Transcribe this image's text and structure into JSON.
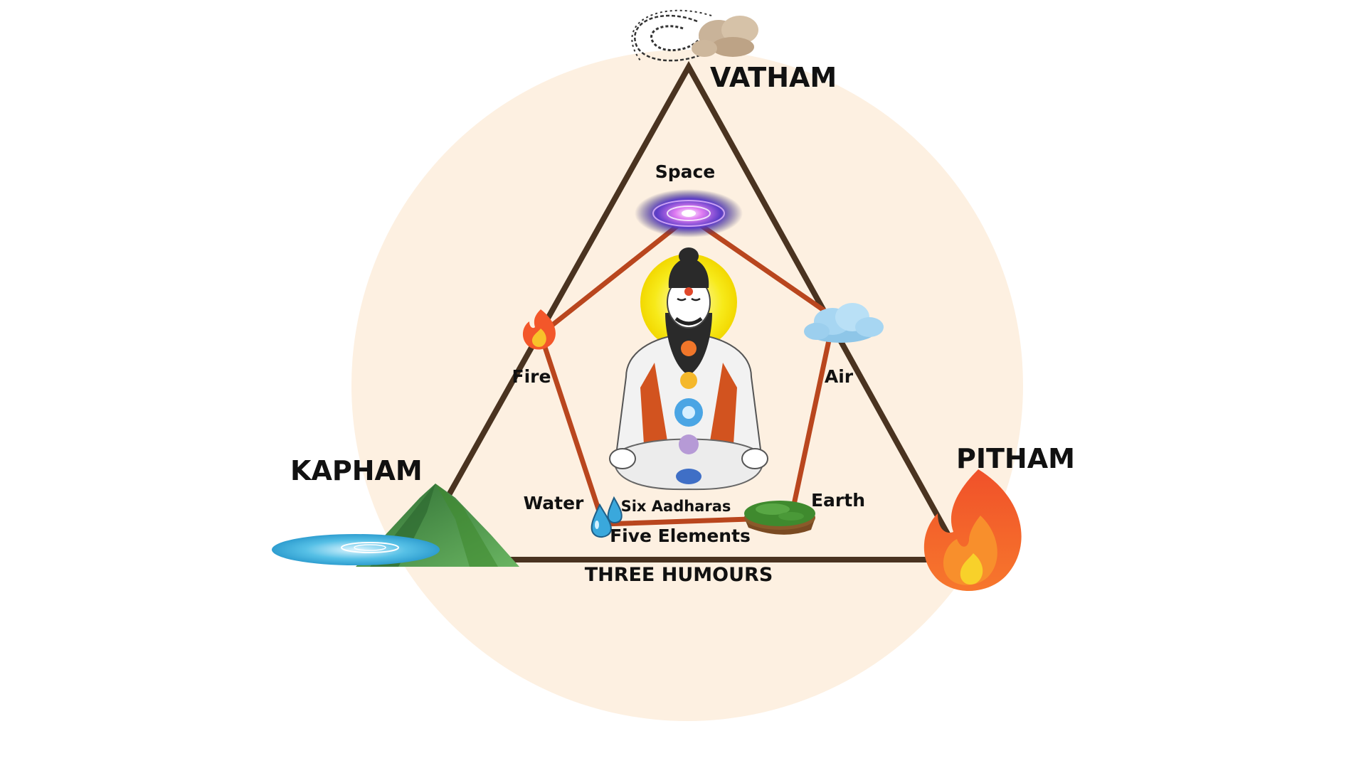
{
  "colors": {
    "background_circle": "#fdf0e1",
    "humour_triangle": "#4a3320",
    "element_pentagon": "#b9461e",
    "halo": "#f7ea1a",
    "fire": "#f2562b",
    "water": "#39a6d8",
    "earth": "#3f8a2e",
    "mountain": "#4f9a4c"
  },
  "humours": {
    "vatham": "VATHAM",
    "pitham": "PITHAM",
    "kapham": "KAPHAM",
    "title": "THREE HUMOURS"
  },
  "elements": {
    "space": "Space",
    "fire": "Fire",
    "air": "Air",
    "water": "Water",
    "earth": "Earth",
    "title": "Five Elements"
  },
  "center": {
    "chakras_label": "Six Aadharas",
    "figure_icon": "meditating-siddhar-icon"
  },
  "icons": {
    "vatham": "wind-swirl-icon",
    "pitham": "flame-icon",
    "kapham": "mountain-lake-icon",
    "space": "galaxy-icon",
    "fire": "small-flame-icon",
    "air": "cloud-icon",
    "water": "water-drops-icon",
    "earth": "grass-patch-icon"
  }
}
